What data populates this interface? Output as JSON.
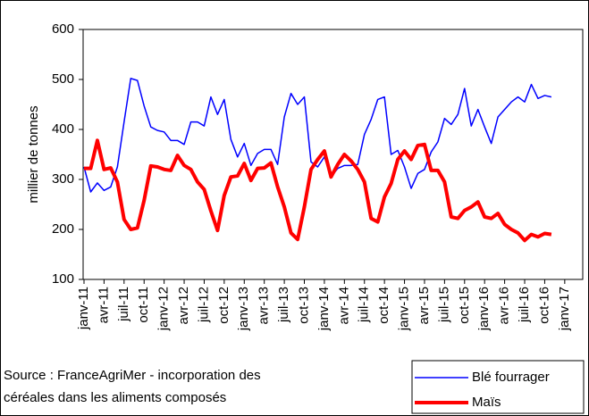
{
  "chart_data": {
    "type": "line",
    "ylabel": "millier de tonnes",
    "categories": [
      "janv-11",
      null,
      null,
      "avr-11",
      null,
      null,
      "juil-11",
      null,
      null,
      "oct-11",
      null,
      null,
      "janv-12",
      null,
      null,
      "avr-12",
      null,
      null,
      "juil-12",
      null,
      null,
      "oct-12",
      null,
      null,
      "janv-13",
      null,
      null,
      "avr-13",
      null,
      null,
      "juil-13",
      null,
      null,
      "oct-13",
      null,
      null,
      "janv-14",
      null,
      null,
      "avr-14",
      null,
      null,
      "juil-14",
      null,
      null,
      "oct-14",
      null,
      null,
      "janv-15",
      null,
      null,
      "avr-15",
      null,
      null,
      "juil-15",
      null,
      null,
      "oct-15",
      null,
      null,
      "janv-16",
      null,
      null,
      "avr-16",
      null,
      null,
      "juil-16",
      null,
      null,
      "oct-16",
      null,
      null,
      "janv-17"
    ],
    "series": [
      {
        "name": "Blé fourrager",
        "color": "#0000ff",
        "width": 1.5,
        "values": [
          325,
          275,
          293,
          278,
          285,
          325,
          415,
          502,
          498,
          447,
          405,
          398,
          395,
          378,
          378,
          370,
          415,
          415,
          407,
          465,
          430,
          460,
          380,
          345,
          372,
          328,
          352,
          360,
          360,
          330,
          425,
          472,
          450,
          465,
          335,
          325,
          345,
          305,
          322,
          328,
          328,
          330,
          390,
          420,
          460,
          465,
          350,
          358,
          325,
          282,
          312,
          320,
          355,
          375,
          422,
          410,
          430,
          482,
          407,
          440,
          405,
          372,
          425,
          440,
          455,
          465,
          455,
          490,
          462,
          468,
          465,
          null,
          null
        ]
      },
      {
        "name": "Maïs",
        "color": "#ff0000",
        "width": 4,
        "values": [
          322,
          322,
          378,
          320,
          323,
          295,
          220,
          200,
          203,
          258,
          327,
          325,
          320,
          318,
          348,
          328,
          320,
          295,
          280,
          237,
          198,
          268,
          305,
          307,
          332,
          298,
          322,
          323,
          333,
          285,
          245,
          193,
          180,
          245,
          320,
          340,
          357,
          305,
          330,
          350,
          337,
          320,
          295,
          222,
          215,
          265,
          292,
          340,
          357,
          340,
          368,
          370,
          318,
          318,
          295,
          225,
          222,
          238,
          245,
          255,
          225,
          222,
          232,
          210,
          200,
          193,
          178,
          190,
          185,
          192,
          190,
          null,
          null
        ]
      }
    ],
    "ylim": [
      100,
      600
    ],
    "yticks": [
      100,
      200,
      300,
      400,
      500,
      600
    ],
    "annotations": [
      "Source : FranceAgriMer - incorporation des",
      "céréales dans les aliments composés"
    ],
    "legend": "bottom-right"
  }
}
